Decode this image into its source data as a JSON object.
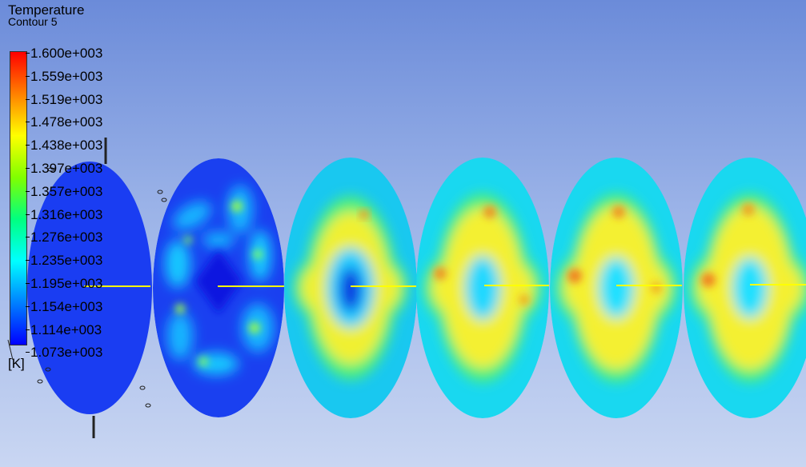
{
  "legend": {
    "title": "Temperature",
    "subtitle": "Contour 5",
    "unit": "[K]",
    "ticks": [
      "1.600e+003",
      "1.559e+003",
      "1.519e+003",
      "1.478e+003",
      "1.438e+003",
      "1.397e+003",
      "1.357e+003",
      "1.316e+003",
      "1.276e+003",
      "1.235e+003",
      "1.195e+003",
      "1.154e+003",
      "1.114e+003",
      "1.073e+003"
    ],
    "colormap": [
      "#0000ff",
      "#0080ff",
      "#00ffff",
      "#00ff80",
      "#80ff00",
      "#ffff00",
      "#ff8000",
      "#ff0000"
    ]
  },
  "view": {
    "background_top": "#6b8bd9",
    "background_bottom": "#c9d6f2",
    "axis_line_color": "#ffff00"
  }
}
